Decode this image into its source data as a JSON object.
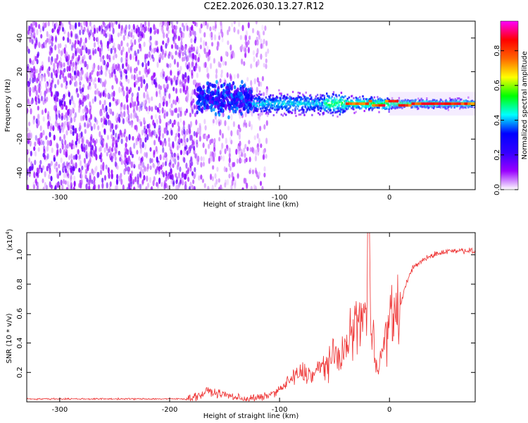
{
  "title": "C2E2.2026.030.13.27.R12",
  "chart_data": [
    {
      "type": "heatmap",
      "xlabel": "Height of straight line (km)",
      "ylabel": "Frequency (Hz)",
      "xlim": [
        -330,
        78
      ],
      "ylim": [
        -50,
        50
      ],
      "xticks": [
        -300,
        -200,
        -100,
        0
      ],
      "xtick_labels": [
        "-300",
        "-200",
        "-100",
        "0"
      ],
      "yticks": [
        -40,
        -20,
        0,
        20,
        40
      ],
      "ytick_labels": [
        "-40",
        "-20",
        "0",
        "20",
        "40"
      ],
      "colorbar": {
        "label": "Normalized spectral amplitude",
        "range": [
          0,
          0.97
        ],
        "ticks": [
          0.0,
          0.2,
          0.4,
          0.6,
          0.8
        ],
        "tick_labels": [
          "0.0",
          "0.2",
          "0.4",
          "0.6",
          "0.8"
        ],
        "colormap": [
          "#ffffff",
          "#9900ff",
          "#0000ff",
          "#00ffff",
          "#00ff00",
          "#ffff00",
          "#ff0000",
          "#ff00ff"
        ]
      },
      "regions": [
        {
          "name": "noise",
          "x_range": [
            -330,
            -175
          ],
          "freq_range": [
            -50,
            50
          ],
          "amplitude": 0.12
        },
        {
          "name": "noise-sparse",
          "x_range": [
            -175,
            -110
          ],
          "freq_range": [
            -50,
            50
          ],
          "amplitude": 0.08
        },
        {
          "name": "onset",
          "x_range": [
            -175,
            -125
          ],
          "freq_range": [
            -12,
            22
          ],
          "amplitude": 0.25
        },
        {
          "name": "signal-band",
          "x_range": [
            -125,
            78
          ],
          "freq_range": [
            -8,
            10
          ],
          "amplitude": 0.45
        },
        {
          "name": "carrier",
          "x_range": [
            -40,
            78
          ],
          "center_freq": 1,
          "amplitude": 0.9
        }
      ]
    },
    {
      "type": "line",
      "xlabel": "Height of straight line (km)",
      "ylabel": "SNR (10 * v/v)",
      "y_multiplier": "(x10",
      "y_multiplier_exp": "4",
      "y_multiplier_close": ")",
      "xlim": [
        -330,
        78
      ],
      "ylim": [
        0,
        1.15
      ],
      "xticks": [
        -300,
        -200,
        -100,
        0
      ],
      "xtick_labels": [
        "-300",
        "-200",
        "-100",
        "0"
      ],
      "yticks": [
        0.2,
        0.4,
        0.6,
        0.8,
        1.0
      ],
      "ytick_labels": [
        "0.2",
        "0.4",
        "0.6",
        "0.8",
        "1.0"
      ],
      "series": [
        {
          "name": "SNR",
          "color": "#ee3333",
          "x": [
            -330,
            -250,
            -185,
            -170,
            -165,
            -160,
            -150,
            -140,
            -130,
            -115,
            -100,
            -90,
            -80,
            -70,
            -60,
            -50,
            -40,
            -35,
            -30,
            -25,
            -20,
            -18,
            -15,
            -10,
            -5,
            0,
            5,
            10,
            15,
            20,
            30,
            40,
            50,
            60,
            70,
            78
          ],
          "y": [
            0.02,
            0.02,
            0.02,
            0.05,
            0.08,
            0.06,
            0.05,
            0.03,
            0.02,
            0.03,
            0.08,
            0.15,
            0.2,
            0.18,
            0.25,
            0.3,
            0.35,
            0.45,
            0.55,
            0.58,
            0.6,
            0.62,
            0.48,
            0.2,
            0.4,
            0.55,
            0.6,
            0.65,
            0.8,
            0.9,
            0.96,
            1.0,
            1.02,
            1.03,
            1.03,
            1.02
          ]
        }
      ]
    }
  ]
}
